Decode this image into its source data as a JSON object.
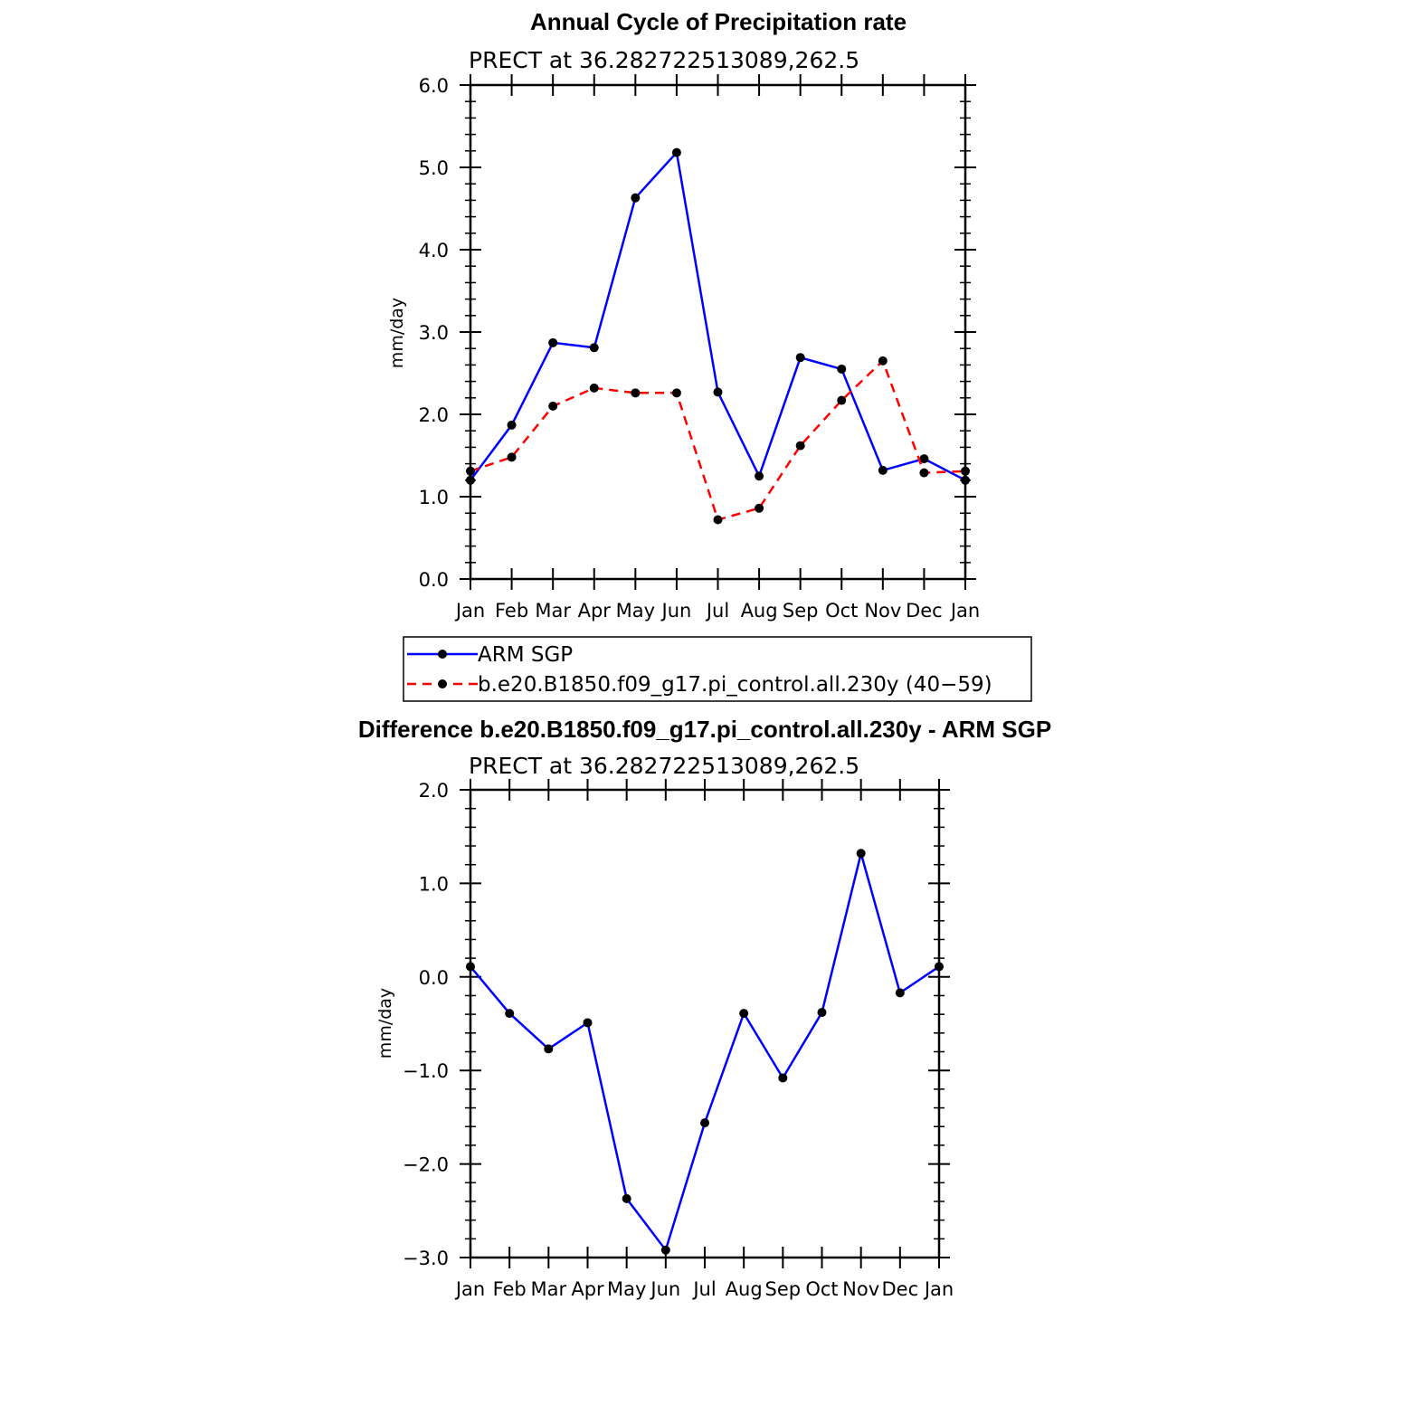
{
  "chart_data": [
    {
      "type": "line",
      "title": "Annual Cycle of Precipitation rate",
      "subtitle": "PRECT at 36.282722513089,262.5",
      "ylabel": "mm/day",
      "categories": [
        "Jan",
        "Feb",
        "Mar",
        "Apr",
        "May",
        "Jun",
        "Jul",
        "Aug",
        "Sep",
        "Oct",
        "Nov",
        "Dec",
        "Jan"
      ],
      "ylim": [
        0,
        6
      ],
      "yticks": [
        "0.0",
        "1.0",
        "2.0",
        "3.0",
        "4.0",
        "5.0",
        "6.0"
      ],
      "ytick_values": [
        0,
        1,
        2,
        3,
        4,
        5,
        6
      ],
      "grid": false,
      "legend_position": "bottom",
      "series": [
        {
          "name": "ARM SGP",
          "color": "#0000ff",
          "dash": "solid",
          "values": [
            1.2,
            1.87,
            2.87,
            2.81,
            4.63,
            5.18,
            2.27,
            1.25,
            2.69,
            2.55,
            1.32,
            1.46,
            1.2
          ]
        },
        {
          "name": "b.e20.B1850.f09_g17.pi_control.all.230y (40−59)",
          "color": "#ff0000",
          "dash": "dashed",
          "values": [
            1.31,
            1.48,
            2.1,
            2.32,
            2.26,
            2.26,
            0.72,
            0.86,
            1.62,
            2.17,
            2.65,
            1.29,
            1.31
          ]
        }
      ]
    },
    {
      "type": "line",
      "title": "Difference b.e20.B1850.f09_g17.pi_control.all.230y - ARM SGP",
      "subtitle": "PRECT at 36.282722513089,262.5",
      "ylabel": "mm/day",
      "categories": [
        "Jan",
        "Feb",
        "Mar",
        "Apr",
        "May",
        "Jun",
        "Jul",
        "Aug",
        "Sep",
        "Oct",
        "Nov",
        "Dec",
        "Jan"
      ],
      "ylim": [
        -3,
        2
      ],
      "yticks": [
        "−3.0",
        "−2.0",
        "−1.0",
        "0.0",
        "1.0",
        "2.0"
      ],
      "ytick_values": [
        -3,
        -2,
        -1,
        0,
        1,
        2
      ],
      "grid": false,
      "series": [
        {
          "name": "",
          "color": "#0000ff",
          "dash": "solid",
          "values": [
            0.11,
            -0.39,
            -0.77,
            -0.49,
            -2.37,
            -2.92,
            -1.56,
            -0.39,
            -1.08,
            -0.38,
            1.32,
            -0.17,
            0.11
          ]
        }
      ]
    }
  ]
}
